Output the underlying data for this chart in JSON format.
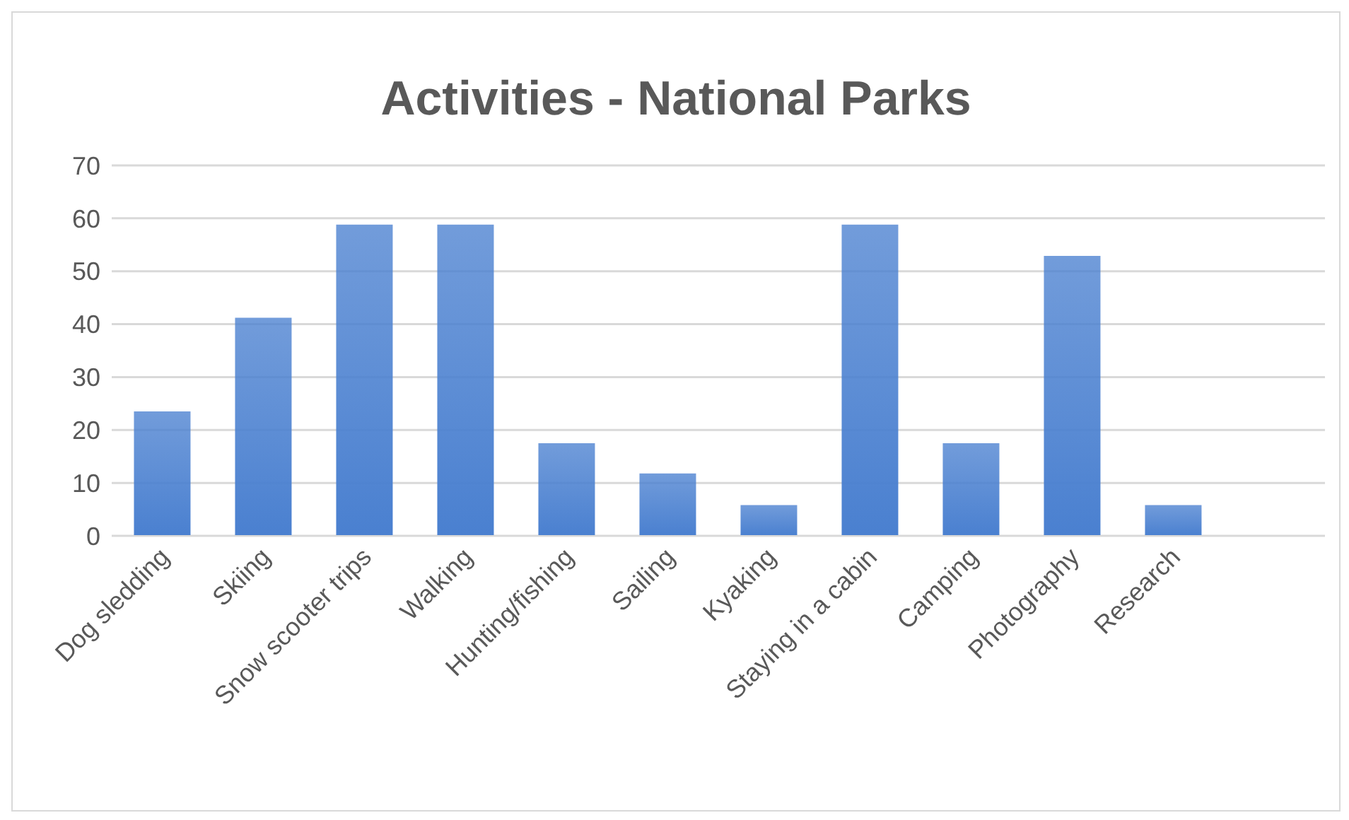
{
  "chart_data": {
    "type": "bar",
    "title": "Activities - National Parks",
    "categories": [
      "Dog sledding",
      "Skiing",
      "Snow scooter trips",
      "Walking",
      "Hunting/fishing",
      "Sailing",
      "Kyaking",
      "Staying in a cabin",
      "Camping",
      "Photography",
      "Research",
      null
    ],
    "values": [
      23.5,
      41.2,
      58.8,
      58.8,
      17.5,
      11.8,
      5.8,
      58.8,
      17.5,
      52.9,
      5.8,
      null
    ],
    "color": "#4a80d0",
    "ylim": [
      0,
      70
    ],
    "yticks": [
      0,
      10,
      20,
      30,
      40,
      50,
      60,
      70
    ],
    "grid": "y"
  }
}
